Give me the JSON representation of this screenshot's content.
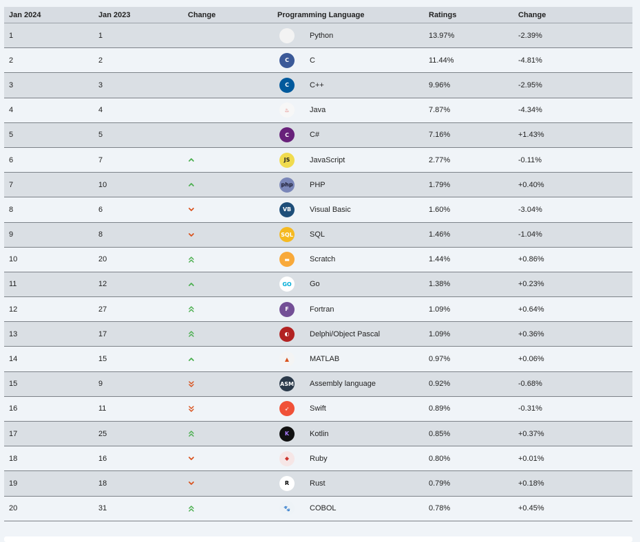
{
  "table": {
    "headers": [
      "Jan 2024",
      "Jan 2023",
      "Change",
      "Programming Language",
      "Ratings",
      "Change"
    ],
    "rows": [
      {
        "rank": "1",
        "prev": "1",
        "trend": "none",
        "logo": {
          "icon": "python-logo-icon",
          "bg": "#f3f3f3",
          "fg": "#3873a7",
          "text": ""
        },
        "language": "Python",
        "rating": "13.97%",
        "change": "-2.39%"
      },
      {
        "rank": "2",
        "prev": "2",
        "trend": "none",
        "logo": {
          "icon": "c-logo-icon",
          "bg": "#3b5998",
          "fg": "#ffffff",
          "text": "C"
        },
        "language": "C",
        "rating": "11.44%",
        "change": "-4.81%"
      },
      {
        "rank": "3",
        "prev": "3",
        "trend": "none",
        "logo": {
          "icon": "cpp-logo-icon",
          "bg": "#00599c",
          "fg": "#ffffff",
          "text": "C"
        },
        "language": "C++",
        "rating": "9.96%",
        "change": "-2.95%"
      },
      {
        "rank": "4",
        "prev": "4",
        "trend": "none",
        "logo": {
          "icon": "java-logo-icon",
          "bg": "#f7f7f7",
          "fg": "#d6403a",
          "text": "♨"
        },
        "language": "Java",
        "rating": "7.87%",
        "change": "-4.34%"
      },
      {
        "rank": "5",
        "prev": "5",
        "trend": "none",
        "logo": {
          "icon": "csharp-logo-icon",
          "bg": "#68217a",
          "fg": "#ffffff",
          "text": "C"
        },
        "language": "C#",
        "rating": "7.16%",
        "change": "+1.43%"
      },
      {
        "rank": "6",
        "prev": "7",
        "trend": "up",
        "logo": {
          "icon": "javascript-logo-icon",
          "bg": "#f0db4f",
          "fg": "#222222",
          "text": "JS"
        },
        "language": "JavaScript",
        "rating": "2.77%",
        "change": "-0.11%"
      },
      {
        "rank": "7",
        "prev": "10",
        "trend": "up",
        "logo": {
          "icon": "php-logo-icon",
          "bg": "#7a86b8",
          "fg": "#1a1a2e",
          "text": "php"
        },
        "language": "PHP",
        "rating": "1.79%",
        "change": "+0.40%"
      },
      {
        "rank": "8",
        "prev": "6",
        "trend": "down",
        "logo": {
          "icon": "visual-basic-logo-icon",
          "bg": "#1e4e79",
          "fg": "#ffffff",
          "text": "VB"
        },
        "language": "Visual Basic",
        "rating": "1.60%",
        "change": "-3.04%"
      },
      {
        "rank": "9",
        "prev": "8",
        "trend": "down",
        "logo": {
          "icon": "sql-logo-icon",
          "bg": "#f5b921",
          "fg": "#ffffff",
          "text": "SQL"
        },
        "language": "SQL",
        "rating": "1.46%",
        "change": "-1.04%"
      },
      {
        "rank": "10",
        "prev": "20",
        "trend": "up2",
        "logo": {
          "icon": "scratch-logo-icon",
          "bg": "#f8a93a",
          "fg": "#ffffff",
          "text": "▬"
        },
        "language": "Scratch",
        "rating": "1.44%",
        "change": "+0.86%"
      },
      {
        "rank": "11",
        "prev": "12",
        "trend": "up",
        "logo": {
          "icon": "go-logo-icon",
          "bg": "#ffffff",
          "fg": "#00add8",
          "text": "GO"
        },
        "language": "Go",
        "rating": "1.38%",
        "change": "+0.23%"
      },
      {
        "rank": "12",
        "prev": "27",
        "trend": "up2",
        "logo": {
          "icon": "fortran-logo-icon",
          "bg": "#734f96",
          "fg": "#ffffff",
          "text": "F"
        },
        "language": "Fortran",
        "rating": "1.09%",
        "change": "+0.64%"
      },
      {
        "rank": "13",
        "prev": "17",
        "trend": "up2",
        "logo": {
          "icon": "delphi-logo-icon",
          "bg": "#b22222",
          "fg": "#ffffff",
          "text": "◐"
        },
        "language": "Delphi/Object Pascal",
        "rating": "1.09%",
        "change": "+0.36%"
      },
      {
        "rank": "14",
        "prev": "15",
        "trend": "up",
        "logo": {
          "icon": "matlab-logo-icon",
          "bg": "#f4f4f4",
          "fg": "#d9531e",
          "text": "▲"
        },
        "language": "MATLAB",
        "rating": "0.97%",
        "change": "+0.06%"
      },
      {
        "rank": "15",
        "prev": "9",
        "trend": "down2",
        "logo": {
          "icon": "assembly-logo-icon",
          "bg": "#2b3a4a",
          "fg": "#ffffff",
          "text": "ASM"
        },
        "language": "Assembly language",
        "rating": "0.92%",
        "change": "-0.68%"
      },
      {
        "rank": "16",
        "prev": "11",
        "trend": "down2",
        "logo": {
          "icon": "swift-logo-icon",
          "bg": "#f05138",
          "fg": "#ffffff",
          "text": "➶"
        },
        "language": "Swift",
        "rating": "0.89%",
        "change": "-0.31%"
      },
      {
        "rank": "17",
        "prev": "25",
        "trend": "up2",
        "logo": {
          "icon": "kotlin-logo-icon",
          "bg": "#111111",
          "fg": "#a97bff",
          "text": "K"
        },
        "language": "Kotlin",
        "rating": "0.85%",
        "change": "+0.37%"
      },
      {
        "rank": "18",
        "prev": "16",
        "trend": "down",
        "logo": {
          "icon": "ruby-logo-icon",
          "bg": "#f6e6e6",
          "fg": "#cc342d",
          "text": "◆"
        },
        "language": "Ruby",
        "rating": "0.80%",
        "change": "+0.01%"
      },
      {
        "rank": "19",
        "prev": "18",
        "trend": "down",
        "logo": {
          "icon": "rust-logo-icon",
          "bg": "#ffffff",
          "fg": "#000000",
          "text": "R"
        },
        "language": "Rust",
        "rating": "0.79%",
        "change": "+0.18%"
      },
      {
        "rank": "20",
        "prev": "31",
        "trend": "up2",
        "logo": {
          "icon": "cobol-logo-icon",
          "bg": "#eef3f7",
          "fg": "#1f6fa3",
          "text": "🐾"
        },
        "language": "COBOL",
        "rating": "0.78%",
        "change": "+0.45%"
      }
    ]
  },
  "colors": {
    "up": "#4caf50",
    "down": "#d9531e"
  }
}
